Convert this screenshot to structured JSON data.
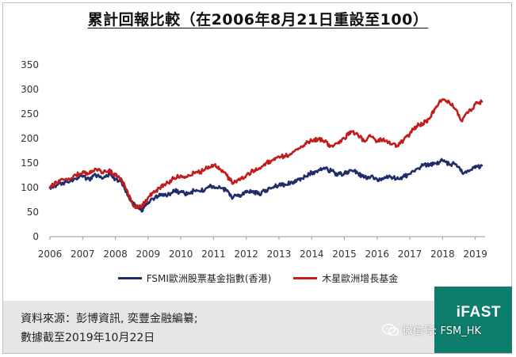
{
  "chart_data": {
    "type": "line",
    "title": "累計回報比較（在2006年8月21日重設至100）",
    "x_ticks": [
      "2006",
      "2007",
      "2008",
      "2009",
      "2010",
      "2011",
      "2012",
      "2013",
      "2014",
      "2015",
      "2016",
      "2017",
      "2018",
      "2019"
    ],
    "y_ticks": [
      "0",
      "50",
      "100",
      "150",
      "200",
      "250",
      "300",
      "350"
    ],
    "xlim": [
      2006.0,
      2019.3
    ],
    "ylim": [
      0,
      350
    ],
    "grid": false,
    "legend_position": "bottom",
    "series": [
      {
        "name": "FSMI歐洲股票基金指數(香港)",
        "color": "#1f2d6b",
        "points": [
          [
            2006.0,
            100
          ],
          [
            2006.2,
            105
          ],
          [
            2006.5,
            112
          ],
          [
            2006.8,
            118
          ],
          [
            2007.0,
            122
          ],
          [
            2007.2,
            117
          ],
          [
            2007.4,
            126
          ],
          [
            2007.6,
            118
          ],
          [
            2007.8,
            128
          ],
          [
            2008.0,
            118
          ],
          [
            2008.2,
            110
          ],
          [
            2008.3,
            95
          ],
          [
            2008.4,
            82
          ],
          [
            2008.5,
            72
          ],
          [
            2008.6,
            62
          ],
          [
            2008.7,
            58
          ],
          [
            2008.8,
            52
          ],
          [
            2008.9,
            63
          ],
          [
            2009.0,
            70
          ],
          [
            2009.2,
            78
          ],
          [
            2009.4,
            87
          ],
          [
            2009.6,
            85
          ],
          [
            2009.8,
            93
          ],
          [
            2010.0,
            91
          ],
          [
            2010.2,
            86
          ],
          [
            2010.4,
            94
          ],
          [
            2010.6,
            92
          ],
          [
            2010.8,
            100
          ],
          [
            2011.0,
            103
          ],
          [
            2011.2,
            100
          ],
          [
            2011.4,
            93
          ],
          [
            2011.6,
            80
          ],
          [
            2011.8,
            85
          ],
          [
            2012.0,
            90
          ],
          [
            2012.2,
            93
          ],
          [
            2012.4,
            86
          ],
          [
            2012.6,
            95
          ],
          [
            2012.8,
            100
          ],
          [
            2013.0,
            105
          ],
          [
            2013.2,
            106
          ],
          [
            2013.4,
            110
          ],
          [
            2013.6,
            117
          ],
          [
            2013.8,
            123
          ],
          [
            2014.0,
            130
          ],
          [
            2014.2,
            135
          ],
          [
            2014.4,
            138
          ],
          [
            2014.6,
            134
          ],
          [
            2014.8,
            126
          ],
          [
            2015.0,
            130
          ],
          [
            2015.2,
            135
          ],
          [
            2015.4,
            130
          ],
          [
            2015.6,
            120
          ],
          [
            2015.8,
            122
          ],
          [
            2016.0,
            117
          ],
          [
            2016.2,
            118
          ],
          [
            2016.4,
            122
          ],
          [
            2016.6,
            118
          ],
          [
            2016.8,
            122
          ],
          [
            2017.0,
            128
          ],
          [
            2017.2,
            138
          ],
          [
            2017.4,
            145
          ],
          [
            2017.6,
            148
          ],
          [
            2017.8,
            150
          ],
          [
            2018.0,
            155
          ],
          [
            2018.2,
            148
          ],
          [
            2018.4,
            148
          ],
          [
            2018.6,
            130
          ],
          [
            2018.8,
            133
          ],
          [
            2019.0,
            140
          ],
          [
            2019.2,
            145
          ]
        ]
      },
      {
        "name": "木星歐洲增長基金",
        "color": "#c21d1d",
        "points": [
          [
            2006.0,
            100
          ],
          [
            2006.2,
            110
          ],
          [
            2006.5,
            118
          ],
          [
            2006.8,
            125
          ],
          [
            2007.0,
            132
          ],
          [
            2007.2,
            128
          ],
          [
            2007.4,
            138
          ],
          [
            2007.6,
            130
          ],
          [
            2007.8,
            135
          ],
          [
            2008.0,
            125
          ],
          [
            2008.2,
            115
          ],
          [
            2008.3,
            102
          ],
          [
            2008.4,
            85
          ],
          [
            2008.5,
            70
          ],
          [
            2008.6,
            62
          ],
          [
            2008.7,
            62
          ],
          [
            2008.8,
            60
          ],
          [
            2008.9,
            70
          ],
          [
            2009.0,
            80
          ],
          [
            2009.2,
            90
          ],
          [
            2009.4,
            103
          ],
          [
            2009.6,
            110
          ],
          [
            2009.8,
            120
          ],
          [
            2010.0,
            125
          ],
          [
            2010.2,
            122
          ],
          [
            2010.4,
            130
          ],
          [
            2010.6,
            132
          ],
          [
            2010.8,
            140
          ],
          [
            2011.0,
            146
          ],
          [
            2011.2,
            138
          ],
          [
            2011.4,
            125
          ],
          [
            2011.6,
            108
          ],
          [
            2011.8,
            115
          ],
          [
            2012.0,
            125
          ],
          [
            2012.2,
            135
          ],
          [
            2012.4,
            140
          ],
          [
            2012.6,
            150
          ],
          [
            2012.8,
            156
          ],
          [
            2013.0,
            163
          ],
          [
            2013.2,
            165
          ],
          [
            2013.4,
            170
          ],
          [
            2013.6,
            180
          ],
          [
            2013.8,
            190
          ],
          [
            2014.0,
            195
          ],
          [
            2014.2,
            200
          ],
          [
            2014.4,
            193
          ],
          [
            2014.6,
            185
          ],
          [
            2014.8,
            190
          ],
          [
            2015.0,
            200
          ],
          [
            2015.2,
            215
          ],
          [
            2015.4,
            210
          ],
          [
            2015.6,
            195
          ],
          [
            2015.8,
            205
          ],
          [
            2016.0,
            195
          ],
          [
            2016.2,
            200
          ],
          [
            2016.4,
            188
          ],
          [
            2016.6,
            186
          ],
          [
            2016.8,
            195
          ],
          [
            2017.0,
            210
          ],
          [
            2017.2,
            225
          ],
          [
            2017.4,
            230
          ],
          [
            2017.6,
            240
          ],
          [
            2017.8,
            265
          ],
          [
            2018.0,
            280
          ],
          [
            2018.2,
            275
          ],
          [
            2018.4,
            260
          ],
          [
            2018.6,
            235
          ],
          [
            2018.8,
            255
          ],
          [
            2019.0,
            270
          ],
          [
            2019.2,
            275
          ]
        ]
      }
    ]
  },
  "footer": {
    "source": "資料來源：彭博資訊, 奕豐金融編纂;",
    "as_of": "數據截至2019年10月22日"
  },
  "brand": {
    "logo_text": "iFAST",
    "wechat_label": "微信号: FSM_HK"
  }
}
